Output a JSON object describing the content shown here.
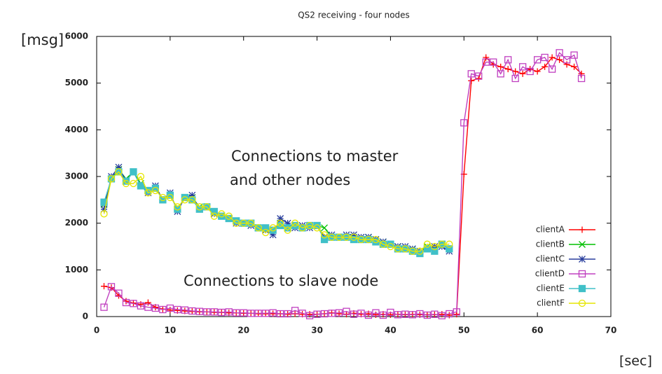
{
  "chart_data": {
    "type": "line",
    "title": "QS2 receiving - four nodes",
    "y_label": "[msg]",
    "x_label": "[sec]",
    "annotations": [
      "Connections to master",
      "and other nodes",
      "Connections to slave node"
    ],
    "xlim": [
      0,
      70
    ],
    "ylim": [
      0,
      6000
    ],
    "xticks": [
      0,
      10,
      20,
      30,
      40,
      50,
      60,
      70
    ],
    "yticks": [
      0,
      1000,
      2000,
      3000,
      4000,
      5000,
      6000
    ],
    "legend": "lower right",
    "x": [
      1,
      2,
      3,
      4,
      5,
      6,
      7,
      8,
      9,
      10,
      11,
      12,
      13,
      14,
      15,
      16,
      17,
      18,
      19,
      20,
      21,
      22,
      23,
      24,
      25,
      26,
      27,
      28,
      29,
      30,
      31,
      32,
      33,
      34,
      35,
      36,
      37,
      38,
      39,
      40,
      41,
      42,
      43,
      44,
      45,
      46,
      47,
      48,
      49,
      50,
      51,
      52,
      53,
      54,
      55,
      56,
      57,
      58,
      59,
      60,
      61,
      62,
      63,
      64,
      65,
      66
    ],
    "series": [
      {
        "name": "clientA",
        "color": "#ff0000",
        "marker": "plus",
        "values": [
          650,
          620,
          450,
          330,
          290,
          260,
          300,
          200,
          160,
          140,
          130,
          120,
          110,
          100,
          100,
          90,
          90,
          80,
          80,
          70,
          70,
          60,
          60,
          60,
          60,
          50,
          60,
          50,
          50,
          50,
          60,
          80,
          60,
          50,
          70,
          50,
          60,
          40,
          50,
          40,
          50,
          40,
          50,
          40,
          40,
          40,
          50,
          30,
          50,
          3050,
          5050,
          5100,
          5550,
          5400,
          5350,
          5300,
          5250,
          5200,
          5300,
          5250,
          5350,
          5550,
          5500,
          5400,
          5350,
          5200
        ]
      },
      {
        "name": "clientB",
        "color": "#00c000",
        "marker": "cross",
        "values": [
          2400,
          2950,
          3150,
          2950,
          3100,
          2850,
          2700,
          2750,
          2500,
          2600,
          2300,
          2550,
          2550,
          2350,
          2350,
          2250,
          2150,
          2100,
          2050,
          2000,
          2000,
          1900,
          1900,
          1850,
          2000,
          1900,
          1950,
          1900,
          1950,
          1950,
          1900,
          1700,
          1700,
          1700,
          1700,
          1650,
          1700,
          1650,
          1600,
          1550,
          1500,
          1450,
          1450,
          1400,
          1500,
          1450,
          1550,
          1450,
          null,
          null,
          null,
          null,
          null,
          null,
          null,
          null,
          null,
          null,
          null,
          null,
          null,
          null,
          null,
          null,
          null,
          null
        ]
      },
      {
        "name": "clientC",
        "color": "#2a3f9d",
        "marker": "star",
        "values": [
          2300,
          3000,
          3200,
          2900,
          3100,
          2800,
          2650,
          2800,
          2500,
          2650,
          2250,
          2550,
          2600,
          2300,
          2350,
          2200,
          2150,
          2100,
          2000,
          2000,
          1950,
          1900,
          1850,
          1750,
          2100,
          2000,
          1900,
          1950,
          1900,
          1950,
          1700,
          1750,
          1700,
          1750,
          1750,
          1700,
          1700,
          1650,
          1600,
          1550,
          1500,
          1500,
          1450,
          1400,
          1450,
          1500,
          1500,
          1400,
          null,
          null,
          null,
          null,
          null,
          null,
          null,
          null,
          null,
          null,
          null,
          null,
          null,
          null,
          null,
          null,
          null,
          null
        ]
      },
      {
        "name": "clientD",
        "color": "#c040c0",
        "marker": "square",
        "values": [
          200,
          640,
          500,
          300,
          280,
          230,
          200,
          180,
          150,
          180,
          150,
          140,
          120,
          110,
          100,
          100,
          90,
          100,
          80,
          80,
          70,
          70,
          70,
          80,
          60,
          60,
          130,
          70,
          20,
          50,
          60,
          70,
          80,
          110,
          50,
          70,
          30,
          80,
          30,
          90,
          40,
          50,
          40,
          60,
          30,
          50,
          20,
          60,
          100,
          4150,
          5200,
          5150,
          5450,
          5450,
          5200,
          5500,
          5100,
          5350,
          5250,
          5500,
          5550,
          5300,
          5650,
          5500,
          5600,
          5100
        ]
      },
      {
        "name": "clientE",
        "color": "#40c0c8",
        "marker": "filled-square",
        "values": [
          2450,
          2950,
          3100,
          2900,
          3100,
          2800,
          2700,
          2750,
          2500,
          2600,
          2300,
          2550,
          2500,
          2300,
          2350,
          2250,
          2150,
          2100,
          2050,
          2000,
          2000,
          1900,
          1900,
          1850,
          1950,
          1900,
          1950,
          1900,
          1950,
          1950,
          1650,
          1700,
          1700,
          1700,
          1650,
          1650,
          1650,
          1600,
          1550,
          1550,
          1450,
          1450,
          1400,
          1350,
          1450,
          1400,
          1550,
          1450,
          null,
          null,
          null,
          null,
          null,
          null,
          null,
          null,
          null,
          null,
          null,
          null,
          null,
          null,
          null,
          null,
          null,
          null
        ]
      },
      {
        "name": "clientF",
        "color": "#e6e600",
        "marker": "circle",
        "values": [
          2200,
          2950,
          3100,
          2850,
          2850,
          3000,
          2650,
          2700,
          2550,
          2550,
          2350,
          2500,
          2500,
          2350,
          2350,
          2150,
          2200,
          2150,
          2000,
          2000,
          2000,
          1900,
          1800,
          1900,
          2000,
          1850,
          2000,
          1900,
          1950,
          1900,
          1750,
          1700,
          1700,
          1700,
          1700,
          1650,
          1650,
          1650,
          1550,
          1500,
          1450,
          1450,
          1400,
          1400,
          1550,
          1500,
          1550,
          1550,
          null,
          null,
          null,
          null,
          null,
          null,
          null,
          null,
          null,
          null,
          null,
          null,
          null,
          null,
          null,
          null,
          null,
          null
        ]
      }
    ]
  }
}
